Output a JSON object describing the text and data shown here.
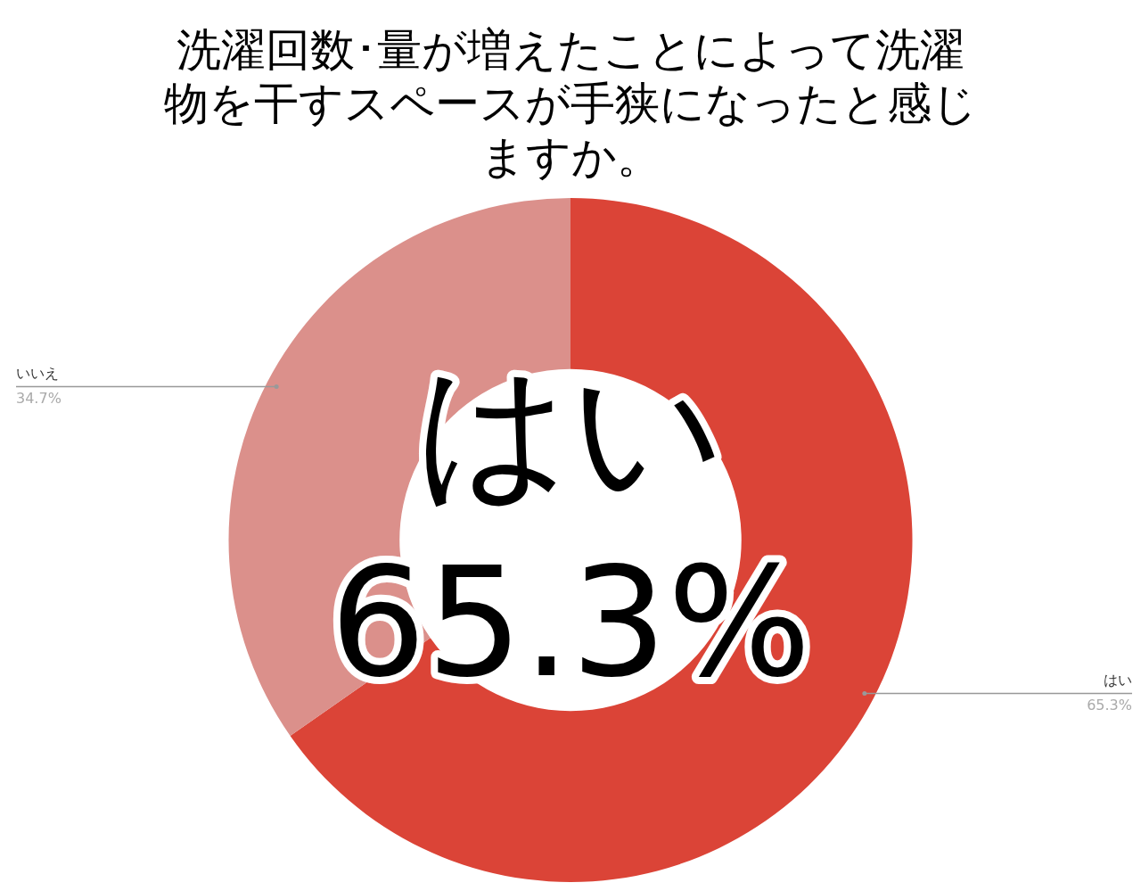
{
  "chart_data": {
    "type": "donut",
    "title": "洗濯回数･量が増えたことによって洗濯物を干すスペースが手狭になったと感じますか。",
    "categories": [
      "はい",
      "いいえ"
    ],
    "values": [
      65.3,
      34.7
    ],
    "colors": [
      "#db4437",
      "#db908b"
    ],
    "value_labels": [
      "65.3%",
      "34.7%"
    ],
    "legend": false,
    "annotations": [
      "はい\n65.3%"
    ]
  }
}
